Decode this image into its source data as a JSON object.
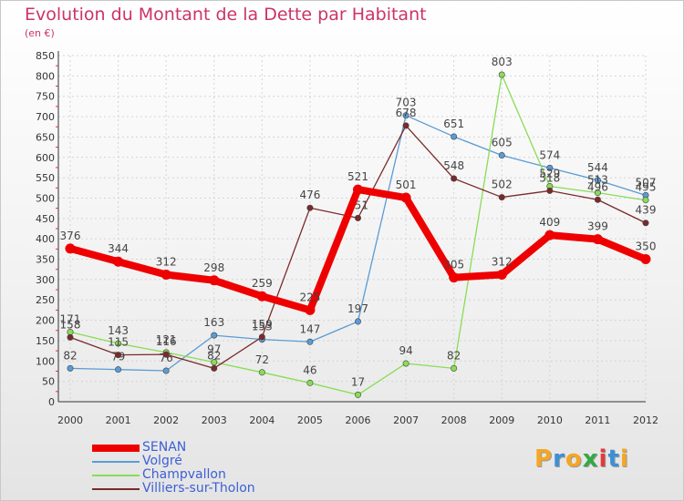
{
  "chart_data": {
    "type": "line",
    "title": "Evolution du Montant de la Dette par Habitant",
    "unit": "(en €)",
    "x": [
      "2000",
      "2001",
      "2002",
      "2003",
      "2004",
      "2005",
      "2006",
      "2007",
      "2008",
      "2009",
      "2010",
      "2011",
      "2012"
    ],
    "yticks": [
      0,
      50,
      100,
      150,
      200,
      250,
      300,
      350,
      400,
      450,
      500,
      550,
      600,
      650,
      700,
      750,
      800,
      850
    ],
    "ylim": [
      0,
      850
    ],
    "grid": true,
    "legend_position": "bottom-left",
    "series": [
      {
        "name": "SENAN",
        "color": "#ee0000",
        "values": [
          376,
          344,
          312,
          298,
          259,
          225,
          521,
          501,
          305,
          312,
          409,
          399,
          350
        ],
        "labels": [
          "376",
          "344",
          "312",
          "298",
          "259",
          "225",
          "521",
          "501",
          "305",
          "312",
          "409",
          "399",
          "350"
        ]
      },
      {
        "name": "Volgré",
        "color": "#5b9bd5",
        "values": [
          82,
          79,
          76,
          163,
          153,
          147,
          197,
          703,
          651,
          605,
          574,
          544,
          507
        ],
        "labels": [
          "82",
          "79",
          "76",
          "163",
          "153",
          "147",
          "197",
          "703",
          "651",
          "605",
          "574",
          "544",
          "507"
        ]
      },
      {
        "name": "Champvallon",
        "color": "#88dd55",
        "values": [
          171,
          143,
          121,
          97,
          72,
          46,
          17,
          94,
          82,
          803,
          529,
          513,
          495
        ],
        "labels": [
          "171",
          "143",
          "121",
          "97",
          "72",
          "46",
          "17",
          "94",
          "82",
          "803",
          "529",
          "513",
          "495"
        ]
      },
      {
        "name": "Villiers-sur-Tholon",
        "color": "#7a2a2a",
        "values": [
          158,
          115,
          116,
          82,
          159,
          476,
          451,
          678,
          548,
          502,
          518,
          496,
          439
        ],
        "labels": [
          "158",
          "115",
          "116",
          "82",
          "159",
          "476",
          "451",
          "678",
          "548",
          "502",
          "518",
          "496",
          "439"
        ]
      }
    ]
  },
  "logo": {
    "letters": [
      "P",
      "r",
      "o",
      "x",
      "i",
      "t",
      "i"
    ],
    "colors": [
      "#f5a623",
      "#3d8fd6",
      "#f5a623",
      "#33aa44",
      "#e23b3b",
      "#3d8fd6",
      "#f5a623"
    ]
  }
}
